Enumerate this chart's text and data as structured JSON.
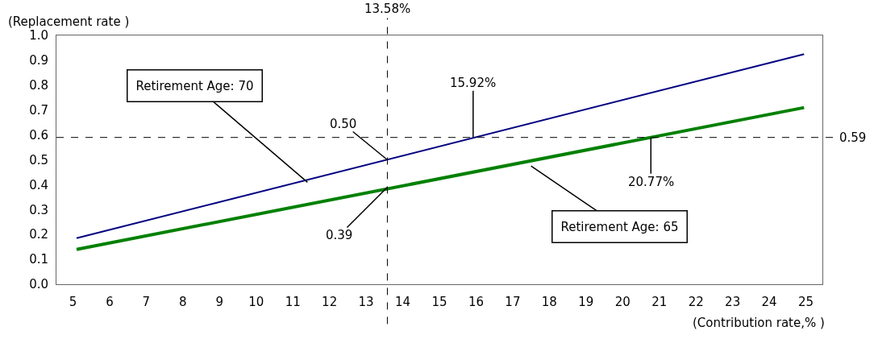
{
  "chart_data": {
    "type": "line",
    "xlabel": "(Contribution rate,% )",
    "ylabel": "(Replacement rate )",
    "x": [
      5.1,
      24.95
    ],
    "series": [
      {
        "values": [
          0.185,
          0.925
        ],
        "color": "#000080"
      },
      {
        "values": [
          0.14,
          0.71
        ],
        "color": "#008000"
      }
    ],
    "xlim": [
      4.55,
      25.45
    ],
    "xticks": [
      5,
      6,
      7,
      8,
      9,
      10,
      11,
      12,
      13,
      14,
      15,
      16,
      17,
      18,
      19,
      20,
      21,
      22,
      23,
      24,
      25
    ],
    "ylim": [
      0,
      1
    ],
    "yticks": [
      {
        "value": 0,
        "label": "0.0"
      },
      0.1,
      0.2,
      0.3,
      0.4,
      0.5,
      0.6,
      0.7,
      0.8,
      0.9,
      {
        "value": 1,
        "label": "1.0"
      }
    ],
    "ref_lines": [
      {
        "axis": "x",
        "value": 13.58,
        "label": "13.58%",
        "line_style": "dashed",
        "color": "#000000"
      },
      {
        "axis": "y",
        "value": 0.59,
        "label": "0.59",
        "line_style": "dashed",
        "color": "#000000"
      }
    ],
    "annotations": [
      {
        "text": "Retirement Age: 70",
        "x": 11.4,
        "y": 0.41
      },
      {
        "text": "Retirement Age: 65",
        "x": 17.5,
        "y": 0.475
      },
      {
        "text": "0.50",
        "x": 13.58,
        "y": 0.5
      },
      {
        "text": "0.39",
        "x": 13.58,
        "y": 0.39
      },
      {
        "text": "15.92%",
        "x": 15.92,
        "y": 0.59
      },
      {
        "text": "20.77%",
        "x": 20.77,
        "y": 0.59
      }
    ],
    "grid": false,
    "marker": "none",
    "line_style": "solid"
  }
}
